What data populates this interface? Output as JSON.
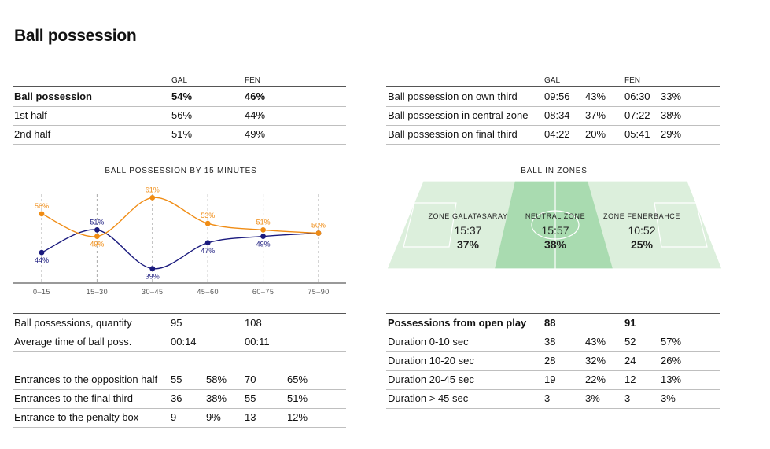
{
  "title": "Ball possession",
  "team_headers": {
    "gal": "GAL",
    "fen": "FEN"
  },
  "summary": {
    "rows": [
      {
        "label": "Ball possession",
        "gal": "54%",
        "fen": "46%"
      },
      {
        "label": "1st half",
        "gal": "56%",
        "fen": "44%"
      },
      {
        "label": "2nd half",
        "gal": "51%",
        "fen": "49%"
      }
    ]
  },
  "thirds": {
    "rows": [
      {
        "label": "Ball possession on own third",
        "gal_time": "09:56",
        "gal_pct": "43%",
        "fen_time": "06:30",
        "fen_pct": "33%"
      },
      {
        "label": "Ball possession in central zone",
        "gal_time": "08:34",
        "gal_pct": "37%",
        "fen_time": "07:22",
        "fen_pct": "38%"
      },
      {
        "label": "Ball possession on final third",
        "gal_time": "04:22",
        "gal_pct": "20%",
        "fen_time": "05:41",
        "fen_pct": "29%"
      }
    ]
  },
  "chart_data": {
    "type": "line",
    "title": "BALL POSSESSION BY 15 MINUTES",
    "categories": [
      "0–15",
      "15–30",
      "30–45",
      "45–60",
      "60–75",
      "75–90"
    ],
    "series": [
      {
        "values": [
          44,
          51,
          39,
          47,
          49,
          50
        ],
        "color": "#1a1a7e"
      },
      {
        "values": [
          56,
          49,
          61,
          53,
          51,
          50
        ],
        "color": "#f08c14"
      }
    ],
    "data_labels": [
      [
        "44%",
        "51%",
        "39%",
        "47%",
        "49%",
        ""
      ],
      [
        "56%",
        "49%",
        "61%",
        "53%",
        "51%",
        "50%"
      ]
    ],
    "ylim": [
      35,
      65
    ],
    "grid": "vertical dashed"
  },
  "zones": {
    "title": "BALL IN ZONES",
    "items": [
      {
        "label": "ZONE GALATASARAY",
        "time": "15:37",
        "pct": "37%"
      },
      {
        "label": "NEUTRAL ZONE",
        "time": "15:57",
        "pct": "38%"
      },
      {
        "label": "ZONE FENERBAHCE",
        "time": "10:52",
        "pct": "25%"
      }
    ],
    "colors": {
      "light": "#dcefdc",
      "center": "#a9dbb0"
    }
  },
  "quantity": {
    "rows": [
      {
        "label": "Ball possessions, quantity",
        "gal": "95",
        "fen": "108"
      },
      {
        "label": "Average time of ball poss.",
        "gal": "00:14",
        "fen": "00:11"
      }
    ]
  },
  "entrances": {
    "rows": [
      {
        "label": "Entrances to the opposition half",
        "gal": "55",
        "gal_pct": "58%",
        "fen": "70",
        "fen_pct": "65%"
      },
      {
        "label": "Entrances to the final third",
        "gal": "36",
        "gal_pct": "38%",
        "fen": "55",
        "fen_pct": "51%"
      },
      {
        "label": "Entrance to the penalty box",
        "gal": "9",
        "gal_pct": "9%",
        "fen": "13",
        "fen_pct": "12%"
      }
    ]
  },
  "open_play": {
    "header": {
      "label": "Possessions from open play",
      "gal": "88",
      "fen": "91"
    },
    "rows": [
      {
        "label": "Duration 0-10 sec",
        "gal": "38",
        "gal_pct": "43%",
        "fen": "52",
        "fen_pct": "57%"
      },
      {
        "label": "Duration 10-20 sec",
        "gal": "28",
        "gal_pct": "32%",
        "fen": "24",
        "fen_pct": "26%"
      },
      {
        "label": "Duration 20-45 sec",
        "gal": "19",
        "gal_pct": "22%",
        "fen": "12",
        "fen_pct": "13%"
      },
      {
        "label": "Duration > 45 sec",
        "gal": "3",
        "gal_pct": "3%",
        "fen": "3",
        "fen_pct": "3%"
      }
    ]
  }
}
